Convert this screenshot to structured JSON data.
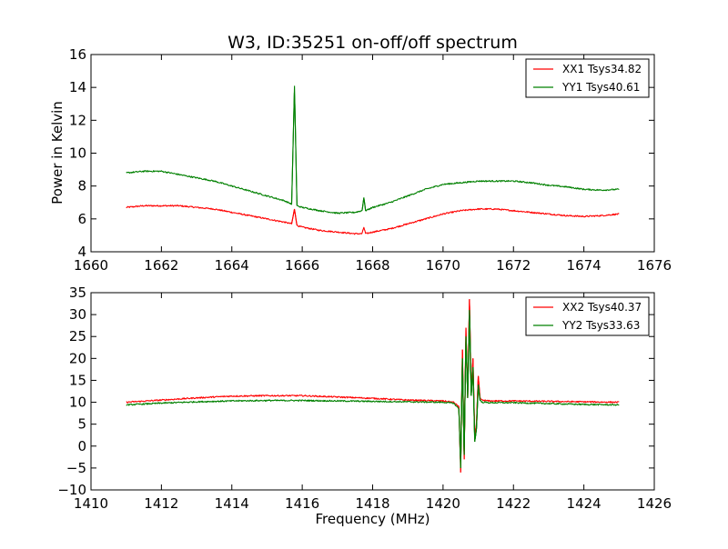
{
  "chart_data": [
    {
      "type": "line",
      "title": "W3, ID:35251 on-off/off spectrum",
      "xlabel": "",
      "ylabel": "Power in Kelvin",
      "xlim": [
        1660,
        1676
      ],
      "ylim": [
        4,
        16
      ],
      "xticks": [
        1660,
        1662,
        1664,
        1666,
        1668,
        1670,
        1672,
        1674,
        1676
      ],
      "yticks": [
        4,
        6,
        8,
        10,
        12,
        14,
        16
      ],
      "legend": "top-right",
      "grid": false,
      "series": [
        {
          "name": "XX1 Tsys34.82",
          "color": "#ff0000",
          "x": [
            1661,
            1661.5,
            1662,
            1662.5,
            1663,
            1663.5,
            1664,
            1664.5,
            1665,
            1665.5,
            1665.7,
            1665.78,
            1665.85,
            1666,
            1666.5,
            1667,
            1667.5,
            1667.7,
            1667.75,
            1667.8,
            1668,
            1668.5,
            1669,
            1669.5,
            1670,
            1670.5,
            1671,
            1671.5,
            1672,
            1672.5,
            1673,
            1673.5,
            1674,
            1674.5,
            1675
          ],
          "y": [
            6.7,
            6.8,
            6.8,
            6.8,
            6.7,
            6.6,
            6.4,
            6.2,
            6.0,
            5.8,
            5.7,
            6.6,
            5.6,
            5.5,
            5.3,
            5.2,
            5.1,
            5.1,
            5.5,
            5.1,
            5.2,
            5.4,
            5.7,
            6.0,
            6.3,
            6.5,
            6.6,
            6.6,
            6.5,
            6.4,
            6.3,
            6.2,
            6.15,
            6.2,
            6.3
          ]
        },
        {
          "name": "YY1 Tsys40.61",
          "color": "#008000",
          "x": [
            1661,
            1661.5,
            1662,
            1662.5,
            1663,
            1663.5,
            1664,
            1664.5,
            1665,
            1665.5,
            1665.7,
            1665.78,
            1665.85,
            1666,
            1666.5,
            1667,
            1667.5,
            1667.7,
            1667.75,
            1667.8,
            1668,
            1668.5,
            1669,
            1669.5,
            1670,
            1670.5,
            1671,
            1671.5,
            1672,
            1672.5,
            1673,
            1673.5,
            1674,
            1674.5,
            1675
          ],
          "y": [
            8.8,
            8.9,
            8.9,
            8.7,
            8.5,
            8.3,
            8.0,
            7.7,
            7.4,
            7.1,
            6.9,
            14.1,
            6.8,
            6.7,
            6.5,
            6.35,
            6.4,
            6.5,
            7.3,
            6.5,
            6.7,
            7.0,
            7.4,
            7.8,
            8.1,
            8.2,
            8.3,
            8.3,
            8.3,
            8.2,
            8.05,
            7.95,
            7.8,
            7.75,
            7.8
          ]
        }
      ]
    },
    {
      "type": "line",
      "title": "",
      "xlabel": "Frequency (MHz)",
      "ylabel": "",
      "xlim": [
        1410,
        1426
      ],
      "ylim": [
        -10,
        35
      ],
      "xticks": [
        1410,
        1412,
        1414,
        1416,
        1418,
        1420,
        1422,
        1424,
        1426
      ],
      "yticks": [
        -10,
        -5,
        0,
        5,
        10,
        15,
        20,
        25,
        30,
        35
      ],
      "legend": "top-right",
      "grid": false,
      "series": [
        {
          "name": "XX2 Tsys40.37",
          "color": "#ff0000",
          "x": [
            1411,
            1412,
            1413,
            1414,
            1415,
            1416,
            1417,
            1418,
            1419,
            1420,
            1420.3,
            1420.45,
            1420.5,
            1420.55,
            1420.6,
            1420.65,
            1420.7,
            1420.75,
            1420.8,
            1420.85,
            1420.9,
            1420.95,
            1421.0,
            1421.05,
            1421.1,
            1421.2,
            1421.3,
            1422,
            1423,
            1424,
            1425
          ],
          "y": [
            10.0,
            10.5,
            11.0,
            11.4,
            11.5,
            11.5,
            11.2,
            10.9,
            10.5,
            10.3,
            10.0,
            9.0,
            -6.0,
            22.0,
            -3.0,
            27.0,
            11.0,
            33.5,
            12.0,
            20.0,
            2.0,
            5.0,
            16.0,
            11.0,
            10.5,
            10.4,
            10.3,
            10.3,
            10.2,
            10.1,
            10.0
          ]
        },
        {
          "name": "YY2 Tsys33.63",
          "color": "#008000",
          "x": [
            1411,
            1412,
            1413,
            1414,
            1415,
            1416,
            1417,
            1418,
            1419,
            1420,
            1420.3,
            1420.45,
            1420.5,
            1420.55,
            1420.6,
            1420.65,
            1420.7,
            1420.75,
            1420.8,
            1420.85,
            1420.9,
            1420.95,
            1421.0,
            1421.05,
            1421.1,
            1421.2,
            1421.3,
            1422,
            1423,
            1424,
            1425
          ],
          "y": [
            9.4,
            9.8,
            10.1,
            10.3,
            10.4,
            10.4,
            10.3,
            10.2,
            10.1,
            10.0,
            9.8,
            8.5,
            -5.0,
            20.0,
            -2.0,
            25.0,
            11.0,
            31.0,
            11.5,
            18.0,
            1.0,
            4.0,
            14.0,
            10.5,
            10.0,
            10.0,
            9.9,
            9.9,
            9.7,
            9.5,
            9.4
          ]
        }
      ]
    }
  ]
}
